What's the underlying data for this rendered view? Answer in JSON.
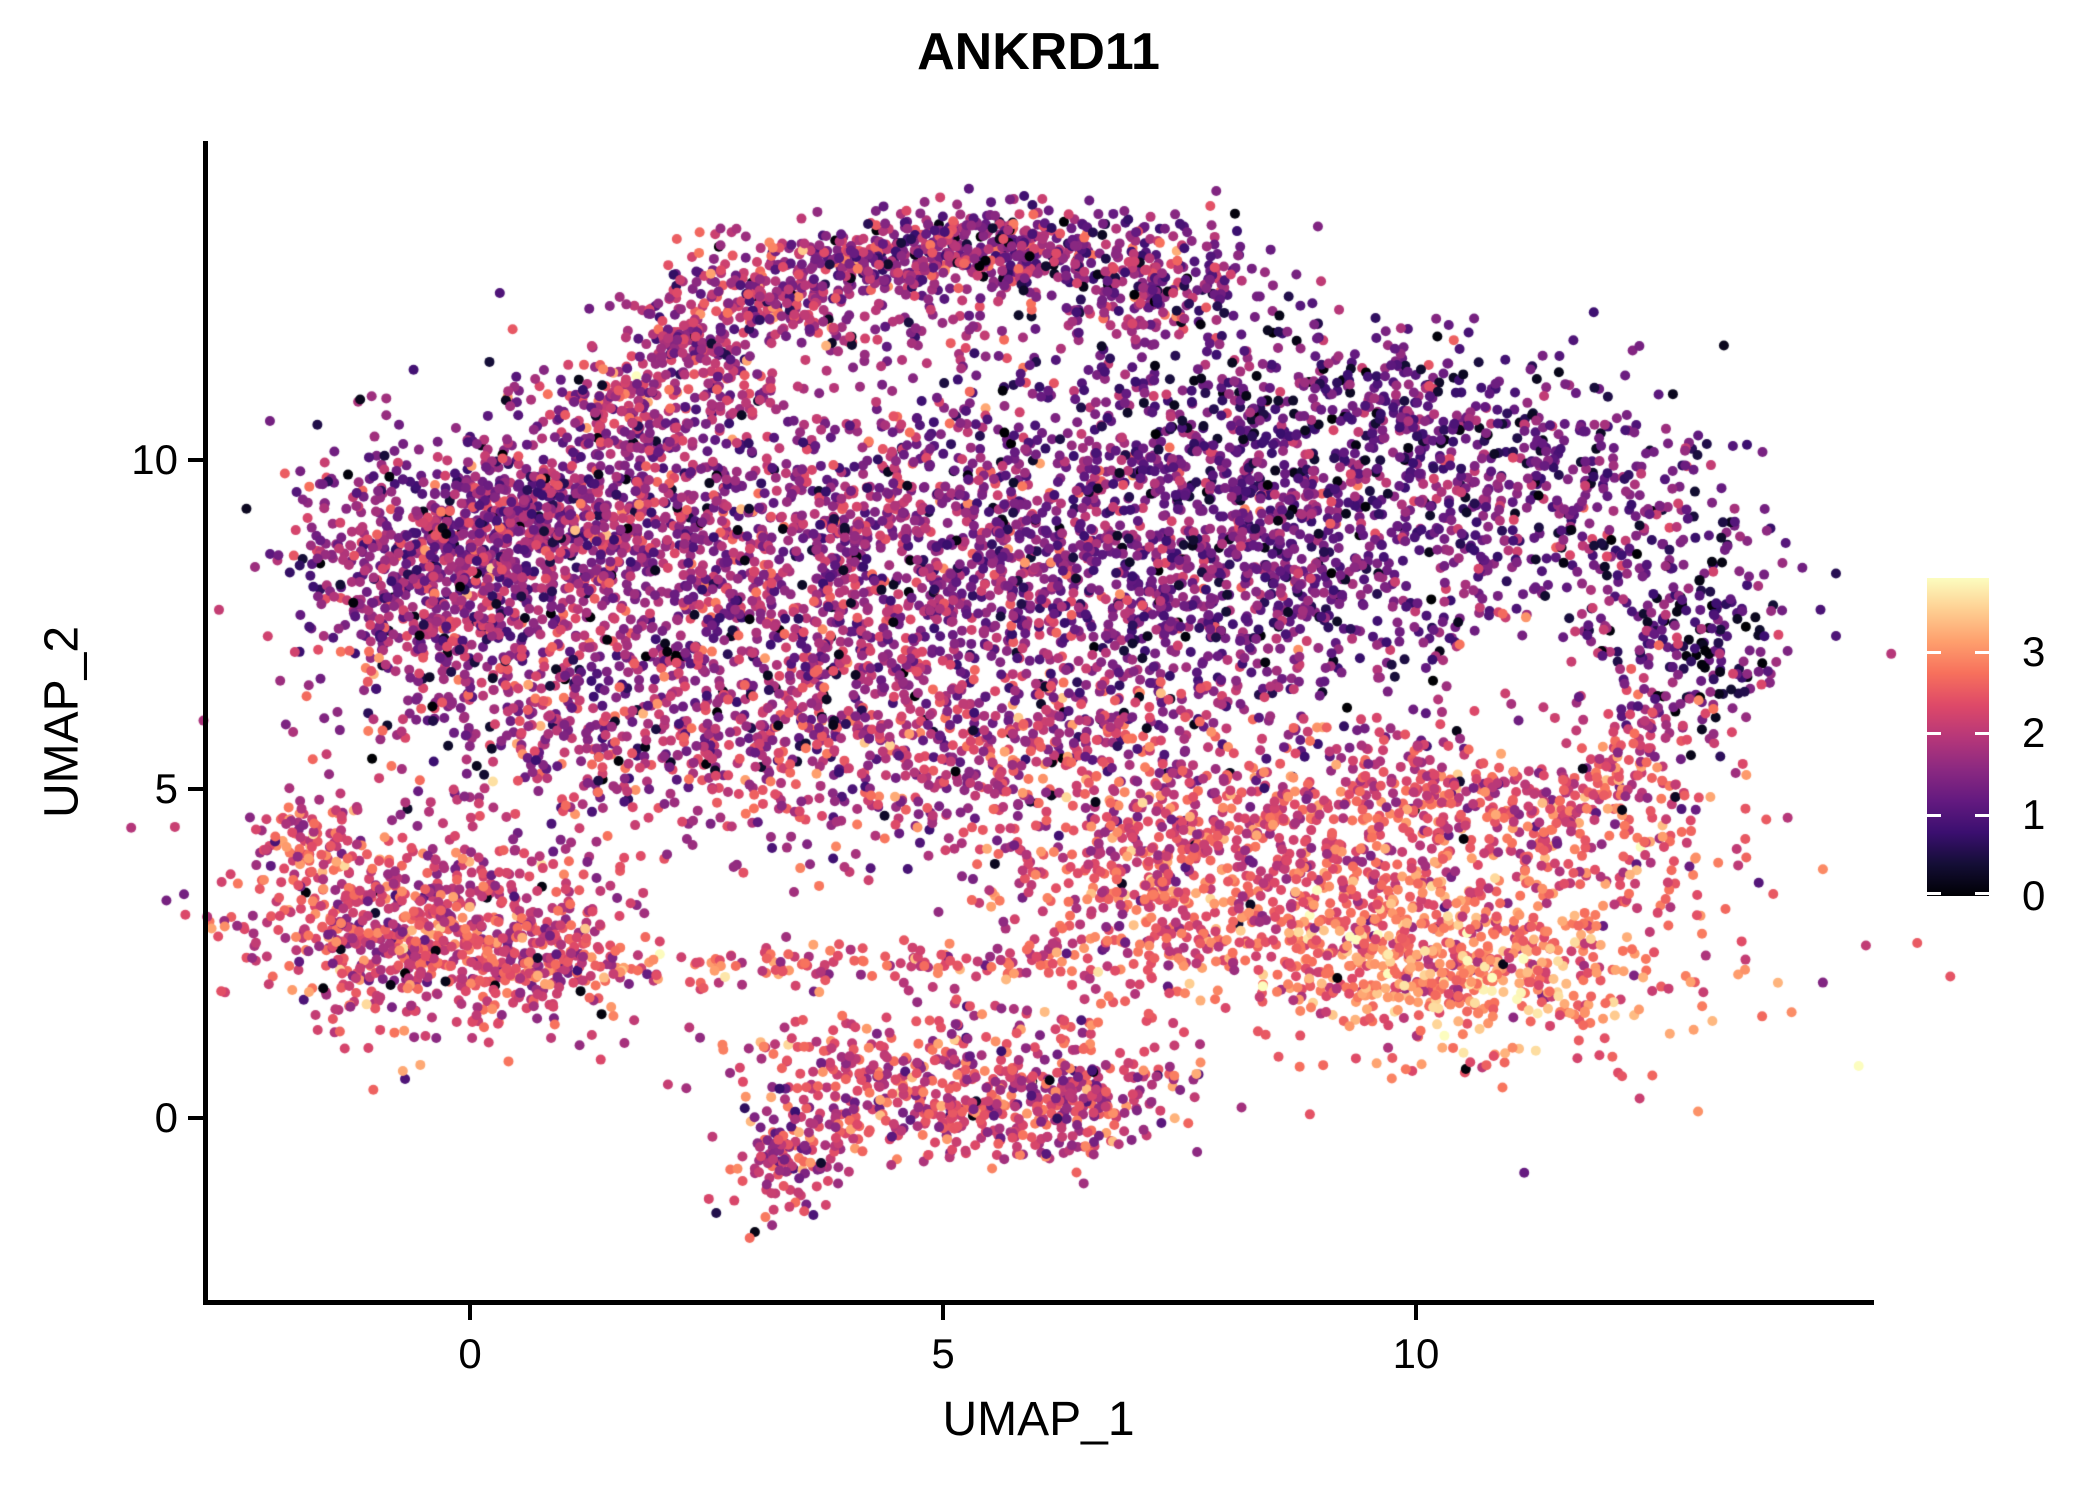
{
  "title": "ANKRD11",
  "axes": {
    "x": {
      "label": "UMAP_1",
      "ticks": [
        "0",
        "5",
        "10"
      ],
      "tick_values": [
        0,
        5,
        10
      ]
    },
    "y": {
      "label": "UMAP_2",
      "ticks": [
        "0",
        "5",
        "10"
      ],
      "tick_values": [
        0,
        5,
        10
      ]
    }
  },
  "legend": {
    "tick_labels": [
      "3",
      "2",
      "1",
      "0"
    ],
    "tick_values": [
      3,
      2,
      1,
      0
    ],
    "max_value": 3.91
  },
  "colors": {
    "background": "#ffffff",
    "axis": "#000000",
    "text": "#000000",
    "colormap_name": "magma",
    "colormap_stops": [
      [
        0.0,
        "#000004"
      ],
      [
        0.1,
        "#140e36"
      ],
      [
        0.2,
        "#3b0f70"
      ],
      [
        0.3,
        "#641a80"
      ],
      [
        0.4,
        "#8c2981"
      ],
      [
        0.5,
        "#b73779"
      ],
      [
        0.6,
        "#de4968"
      ],
      [
        0.7,
        "#f7705c"
      ],
      [
        0.8,
        "#fe9f6d"
      ],
      [
        0.9,
        "#fecf92"
      ],
      [
        1.0,
        "#fcfdbf"
      ]
    ]
  },
  "chart_data": {
    "type": "scatter",
    "title": "ANKRD11",
    "xlabel": "UMAP_1",
    "ylabel": "UMAP_2",
    "x_ticks": [
      0,
      5,
      10
    ],
    "y_ticks": [
      0,
      5,
      10
    ],
    "x_range": [
      -2.8,
      14.8
    ],
    "y_range": [
      -2.8,
      14.9
    ],
    "grid": false,
    "legend_position": "right",
    "color_scale": {
      "min": 0,
      "max": 3.91,
      "ticks": [
        0,
        1,
        2,
        3
      ],
      "colormap": "magma"
    },
    "point_radius_px": 5,
    "seed": 42,
    "cluster_fields": "cx, cy, sigma_x, sigma_y, rotation_deg, n_points, expr_mean, expr_sd, near_zero_frac",
    "clusters": [
      [
        1.85,
        10.75,
        0.45,
        0.35,
        -50,
        150,
        1.9,
        0.6,
        0.02
      ],
      [
        2.45,
        11.7,
        0.5,
        0.3,
        -45,
        160,
        1.85,
        0.6,
        0.02
      ],
      [
        3.2,
        12.5,
        0.55,
        0.28,
        -30,
        190,
        1.8,
        0.6,
        0.03
      ],
      [
        4.2,
        13.0,
        0.6,
        0.26,
        -12,
        220,
        1.7,
        0.6,
        0.03
      ],
      [
        5.3,
        13.35,
        0.6,
        0.24,
        0,
        210,
        1.6,
        0.6,
        0.03
      ],
      [
        6.4,
        13.1,
        0.6,
        0.28,
        12,
        200,
        1.55,
        0.6,
        0.04
      ],
      [
        7.4,
        12.5,
        0.55,
        0.33,
        28,
        170,
        1.5,
        0.6,
        0.05
      ],
      [
        4.6,
        12.1,
        1.3,
        0.45,
        0,
        70,
        1.7,
        0.6,
        0.03
      ],
      [
        -0.7,
        8.2,
        0.62,
        1.05,
        8,
        430,
        1.6,
        0.55,
        0.03
      ],
      [
        0.9,
        7.3,
        1.05,
        1.35,
        0,
        620,
        1.7,
        0.55,
        0.03
      ],
      [
        1.4,
        9.5,
        0.85,
        0.8,
        0,
        420,
        1.6,
        0.55,
        0.03
      ],
      [
        0.2,
        9.0,
        0.55,
        0.55,
        0,
        230,
        1.6,
        0.55,
        0.03
      ],
      [
        3.2,
        8.3,
        1.35,
        1.4,
        0,
        850,
        1.7,
        0.55,
        0.03
      ],
      [
        5.3,
        8.3,
        1.35,
        1.5,
        0,
        800,
        1.65,
        0.55,
        0.03
      ],
      [
        7.8,
        8.6,
        1.5,
        1.3,
        0,
        1250,
        1.35,
        0.5,
        0.04
      ],
      [
        9.3,
        10.7,
        1.55,
        0.75,
        -8,
        480,
        1.15,
        0.5,
        0.08
      ],
      [
        11.4,
        9.2,
        1.15,
        0.95,
        -20,
        400,
        1.3,
        0.5,
        0.06
      ],
      [
        13.0,
        7.5,
        0.4,
        0.85,
        8,
        150,
        0.95,
        0.5,
        0.18
      ],
      [
        11.9,
        6.5,
        0.75,
        0.75,
        0,
        200,
        1.8,
        0.55,
        0.03
      ],
      [
        3.3,
        5.6,
        1.55,
        0.85,
        0,
        430,
        1.95,
        0.55,
        0.02
      ],
      [
        6.0,
        5.4,
        1.25,
        0.85,
        0,
        330,
        2.0,
        0.55,
        0.02
      ],
      [
        9.6,
        3.1,
        1.8,
        1.05,
        -12,
        900,
        2.55,
        0.5,
        0.005
      ],
      [
        10.4,
        2.3,
        0.95,
        0.55,
        -15,
        280,
        3.0,
        0.45,
        0.003
      ],
      [
        7.3,
        3.4,
        0.9,
        0.75,
        0,
        250,
        2.3,
        0.5,
        0.01
      ],
      [
        9.3,
        4.6,
        1.45,
        0.7,
        0,
        270,
        2.2,
        0.5,
        0.01
      ],
      [
        10.8,
        5.0,
        0.85,
        0.55,
        0,
        180,
        2.35,
        0.5,
        0.01
      ],
      [
        12.1,
        4.9,
        0.65,
        0.85,
        20,
        150,
        2.3,
        0.5,
        0.02
      ],
      [
        4.3,
        0.45,
        0.75,
        0.5,
        -20,
        210,
        2.2,
        0.55,
        0.01
      ],
      [
        5.6,
        0.3,
        0.85,
        0.5,
        12,
        240,
        2.2,
        0.55,
        0.01
      ],
      [
        3.4,
        -0.55,
        0.33,
        0.5,
        -30,
        130,
        2.0,
        0.55,
        0.01
      ],
      [
        6.5,
        0.25,
        0.55,
        0.42,
        0,
        140,
        2.1,
        0.55,
        0.01
      ],
      [
        5.0,
        1.35,
        1.2,
        0.4,
        0,
        60,
        2.2,
        0.55,
        0.01
      ],
      [
        2.6,
        2.3,
        1.3,
        0.14,
        2,
        85,
        2.4,
        0.5,
        0.005
      ],
      [
        5.3,
        2.3,
        1.2,
        0.15,
        0,
        80,
        2.45,
        0.5,
        0.005
      ],
      [
        0.9,
        2.1,
        0.4,
        0.3,
        -30,
        55,
        2.35,
        0.5,
        0.01
      ],
      [
        -0.55,
        2.9,
        0.92,
        0.78,
        -10,
        720,
        2.25,
        0.5,
        0.01
      ],
      [
        -1.75,
        4.35,
        0.28,
        0.42,
        -40,
        70,
        2.2,
        0.5,
        0.01
      ],
      [
        0.9,
        2.6,
        0.5,
        0.55,
        0,
        110,
        2.3,
        0.5,
        0.01
      ]
    ],
    "holes": [
      {
        "cx": 11.2,
        "cy": 6.4,
        "rx": 0.85,
        "ry": 1.2,
        "keep_frac": 0.15
      }
    ]
  }
}
